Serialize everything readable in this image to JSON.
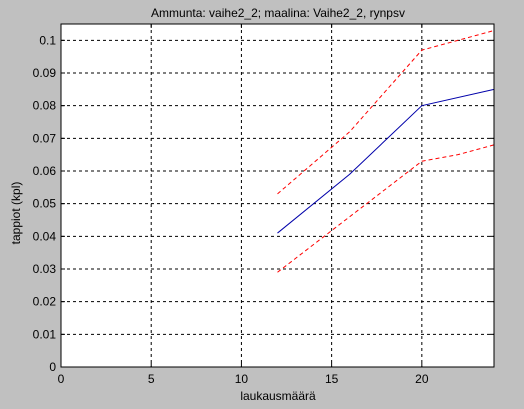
{
  "figure_background": "#c0c0c0",
  "chart_data": {
    "type": "line",
    "title": "Ammunta: vaihe2_2; maalina: Vaihe2_2, rynpsv",
    "xlabel": "laukausmäärä",
    "ylabel": "tappiot (kpl)",
    "xlim": [
      0,
      24
    ],
    "ylim": [
      0,
      0.105
    ],
    "xticks": [
      0,
      5,
      10,
      15,
      20
    ],
    "xtick_labels": [
      "0",
      "5",
      "10",
      "15",
      "20"
    ],
    "yticks": [
      0,
      0.01,
      0.02,
      0.03,
      0.04,
      0.05,
      0.06,
      0.07,
      0.08,
      0.09,
      0.1
    ],
    "ytick_labels": [
      "0",
      "0.01",
      "0.02",
      "0.03",
      "0.04",
      "0.05",
      "0.06",
      "0.07",
      "0.08",
      "0.09",
      "0.1"
    ],
    "grid": true,
    "series": [
      {
        "color": "#0000aa",
        "style": "solid",
        "x": [
          12,
          16,
          20,
          24
        ],
        "y": [
          0.041,
          0.059,
          0.08,
          0.085
        ]
      },
      {
        "color": "#ff0000",
        "style": "dashed",
        "x": [
          12,
          16,
          20,
          24
        ],
        "y": [
          0.053,
          0.072,
          0.097,
          0.103
        ]
      },
      {
        "color": "#ff0000",
        "style": "dashed",
        "x": [
          12,
          16,
          20,
          22,
          24
        ],
        "y": [
          0.029,
          0.046,
          0.063,
          0.065,
          0.068
        ]
      }
    ]
  }
}
